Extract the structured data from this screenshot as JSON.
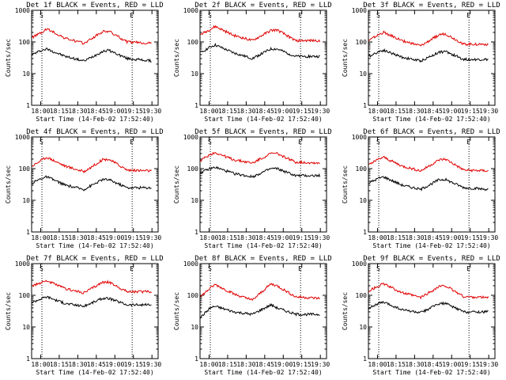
{
  "panel_titles": [
    "Det 1f BLACK = Events, RED = LLD",
    "Det 2f BLACK = Events, RED = LLD",
    "Det 3f BLACK = Events, RED = LLD",
    "Det 4f BLACK = Events, RED = LLD",
    "Det 5f BLACK = Events, RED = LLD",
    "Det 6f BLACK = Events, RED = LLD",
    "Det 7f BLACK = Events, RED = LLD",
    "Det 8f BLACK = Events, RED = LLD",
    "Det 9f BLACK = Events, RED = LLD"
  ],
  "xlabel": "Start Time (14-Feb-02 17:52:40)",
  "ylabel": "Counts/sec",
  "colors": {
    "events": "#000000",
    "lld": "#e00000"
  },
  "chart_data": [
    {
      "type": "line",
      "title": "Det 1f BLACK = Events, RED = LLD",
      "xlabel": "Start Time (14-Feb-02 17:52:40)",
      "ylabel": "Counts/sec",
      "ylim": [
        1,
        1000
      ],
      "yscale": "log",
      "x_ticks": [
        "18:00",
        "18:15",
        "18:30",
        "18:45",
        "19:00",
        "19:15",
        "19:30"
      ],
      "y_ticks": [
        "1",
        "10",
        "100",
        "1000"
      ],
      "markers": [
        "S",
        "E"
      ],
      "x": [
        "17:53",
        "18:01",
        "18:05",
        "18:20",
        "18:35",
        "18:50",
        "18:55",
        "19:10",
        "19:30"
      ],
      "series": [
        {
          "name": "Events",
          "values": [
            40,
            55,
            60,
            35,
            25,
            50,
            55,
            30,
            25
          ]
        },
        {
          "name": "LLD",
          "values": [
            140,
            200,
            260,
            130,
            90,
            210,
            220,
            100,
            90
          ]
        }
      ]
    },
    {
      "type": "line",
      "title": "Det 2f BLACK = Events, RED = LLD",
      "xlabel": "Start Time (14-Feb-02 17:52:40)",
      "ylabel": "Counts/sec",
      "ylim": [
        1,
        1000
      ],
      "yscale": "log",
      "x_ticks": [
        "18:00",
        "18:15",
        "18:30",
        "18:45",
        "19:00",
        "19:15",
        "19:30"
      ],
      "y_ticks": [
        "1",
        "10",
        "100",
        "1000"
      ],
      "markers": [
        "S",
        "E"
      ],
      "x": [
        "17:53",
        "18:01",
        "18:05",
        "18:20",
        "18:35",
        "18:50",
        "18:55",
        "19:10",
        "19:30"
      ],
      "series": [
        {
          "name": "Events",
          "values": [
            45,
            70,
            80,
            45,
            30,
            60,
            60,
            35,
            35
          ]
        },
        {
          "name": "LLD",
          "values": [
            170,
            250,
            310,
            160,
            110,
            230,
            240,
            110,
            110
          ]
        }
      ]
    },
    {
      "type": "line",
      "title": "Det 3f BLACK = Events, RED = LLD",
      "xlabel": "Start Time (14-Feb-02 17:52:40)",
      "ylabel": "Counts/sec",
      "ylim": [
        1,
        1000
      ],
      "yscale": "log",
      "x_ticks": [
        "18:00",
        "18:15",
        "18:30",
        "18:45",
        "19:00",
        "19:15",
        "19:30"
      ],
      "y_ticks": [
        "1",
        "10",
        "100",
        "1000"
      ],
      "markers": [
        "S",
        "E"
      ],
      "x": [
        "17:53",
        "18:01",
        "18:05",
        "18:20",
        "18:35",
        "18:50",
        "18:55",
        "19:10",
        "19:30"
      ],
      "series": [
        {
          "name": "Events",
          "values": [
            35,
            50,
            55,
            33,
            25,
            48,
            50,
            28,
            28
          ]
        },
        {
          "name": "LLD",
          "values": [
            110,
            170,
            200,
            110,
            75,
            170,
            180,
            85,
            85
          ]
        }
      ]
    },
    {
      "type": "line",
      "title": "Det 4f BLACK = Events, RED = LLD",
      "xlabel": "Start Time (14-Feb-02 17:52:40)",
      "ylabel": "Counts/sec",
      "ylim": [
        1,
        1000
      ],
      "yscale": "log",
      "x_ticks": [
        "18:00",
        "18:15",
        "18:30",
        "18:45",
        "19:00",
        "19:15",
        "19:30"
      ],
      "y_ticks": [
        "1",
        "10",
        "100",
        "1000"
      ],
      "markers": [
        "S",
        "E"
      ],
      "x": [
        "17:53",
        "18:01",
        "18:05",
        "18:20",
        "18:35",
        "18:50",
        "18:55",
        "19:10",
        "19:30"
      ],
      "series": [
        {
          "name": "Events",
          "values": [
            35,
            50,
            55,
            30,
            22,
            45,
            45,
            25,
            25
          ]
        },
        {
          "name": "LLD",
          "values": [
            120,
            190,
            230,
            120,
            80,
            190,
            200,
            90,
            85
          ]
        }
      ]
    },
    {
      "type": "line",
      "title": "Det 5f BLACK = Events, RED = LLD",
      "xlabel": "Start Time (14-Feb-02 17:52:40)",
      "ylabel": "Counts/sec",
      "ylim": [
        1,
        1000
      ],
      "yscale": "log",
      "x_ticks": [
        "18:00",
        "18:15",
        "18:30",
        "18:45",
        "19:00",
        "19:15",
        "19:30"
      ],
      "y_ticks": [
        "1",
        "10",
        "100",
        "1000"
      ],
      "markers": [
        "S",
        "E"
      ],
      "x": [
        "17:53",
        "18:01",
        "18:05",
        "18:20",
        "18:35",
        "18:50",
        "18:55",
        "19:10",
        "19:30"
      ],
      "series": [
        {
          "name": "Events",
          "values": [
            75,
            100,
            110,
            70,
            55,
            100,
            100,
            60,
            60
          ]
        },
        {
          "name": "LLD",
          "values": [
            180,
            280,
            320,
            190,
            150,
            300,
            300,
            160,
            150
          ]
        }
      ]
    },
    {
      "type": "line",
      "title": "Det 6f BLACK = Events, RED = LLD",
      "xlabel": "Start Time (14-Feb-02 17:52:40)",
      "ylabel": "Counts/sec",
      "ylim": [
        1,
        1000
      ],
      "yscale": "log",
      "x_ticks": [
        "18:00",
        "18:15",
        "18:30",
        "18:45",
        "19:00",
        "19:15",
        "19:30"
      ],
      "y_ticks": [
        "1",
        "10",
        "100",
        "1000"
      ],
      "markers": [
        "S",
        "E"
      ],
      "x": [
        "17:53",
        "18:01",
        "18:05",
        "18:20",
        "18:35",
        "18:50",
        "18:55",
        "19:10",
        "19:30"
      ],
      "series": [
        {
          "name": "Events",
          "values": [
            35,
            50,
            55,
            30,
            22,
            45,
            45,
            25,
            22
          ]
        },
        {
          "name": "LLD",
          "values": [
            130,
            200,
            230,
            120,
            85,
            190,
            200,
            90,
            85
          ]
        }
      ]
    },
    {
      "type": "line",
      "title": "Det 7f BLACK = Events, RED = LLD",
      "xlabel": "Start Time (14-Feb-02 17:52:40)",
      "ylabel": "Counts/sec",
      "ylim": [
        1,
        1000
      ],
      "yscale": "log",
      "x_ticks": [
        "18:00",
        "18:15",
        "18:30",
        "18:45",
        "19:00",
        "19:15",
        "19:30"
      ],
      "y_ticks": [
        "1",
        "10",
        "100",
        "1000"
      ],
      "markers": [
        "S",
        "E"
      ],
      "x": [
        "17:53",
        "18:01",
        "18:05",
        "18:20",
        "18:35",
        "18:50",
        "18:55",
        "19:10",
        "19:30"
      ],
      "series": [
        {
          "name": "Events",
          "values": [
            60,
            80,
            90,
            55,
            45,
            80,
            80,
            50,
            50
          ]
        },
        {
          "name": "LLD",
          "values": [
            190,
            260,
            290,
            160,
            120,
            260,
            260,
            130,
            130
          ]
        }
      ]
    },
    {
      "type": "line",
      "title": "Det 8f BLACK = Events, RED = LLD",
      "xlabel": "Start Time (14-Feb-02 17:52:40)",
      "ylabel": "Counts/sec",
      "ylim": [
        1,
        1000
      ],
      "yscale": "log",
      "x_ticks": [
        "18:00",
        "18:15",
        "18:30",
        "18:45",
        "19:00",
        "19:15",
        "19:30"
      ],
      "y_ticks": [
        "1",
        "10",
        "100",
        "1000"
      ],
      "markers": [
        "S",
        "E"
      ],
      "x": [
        "17:53",
        "18:01",
        "18:05",
        "18:20",
        "18:35",
        "18:50",
        "18:55",
        "19:10",
        "19:30"
      ],
      "series": [
        {
          "name": "Events",
          "values": [
            20,
            40,
            45,
            30,
            25,
            50,
            40,
            25,
            25
          ]
        },
        {
          "name": "LLD",
          "values": [
            90,
            170,
            220,
            110,
            70,
            230,
            200,
            90,
            80
          ]
        }
      ]
    },
    {
      "type": "line",
      "title": "Det 9f BLACK = Events, RED = LLD",
      "xlabel": "Start Time (14-Feb-02 17:52:40)",
      "ylabel": "Counts/sec",
      "ylim": [
        1,
        1000
      ],
      "yscale": "log",
      "x_ticks": [
        "18:00",
        "18:15",
        "18:30",
        "18:45",
        "19:00",
        "19:15",
        "19:30"
      ],
      "y_ticks": [
        "1",
        "10",
        "100",
        "1000"
      ],
      "markers": [
        "S",
        "E"
      ],
      "x": [
        "17:53",
        "18:01",
        "18:05",
        "18:20",
        "18:35",
        "18:50",
        "18:55",
        "19:10",
        "19:30"
      ],
      "series": [
        {
          "name": "Events",
          "values": [
            40,
            55,
            60,
            35,
            28,
            55,
            55,
            30,
            30
          ]
        },
        {
          "name": "LLD",
          "values": [
            140,
            200,
            230,
            120,
            85,
            190,
            200,
            90,
            85
          ]
        }
      ]
    }
  ]
}
